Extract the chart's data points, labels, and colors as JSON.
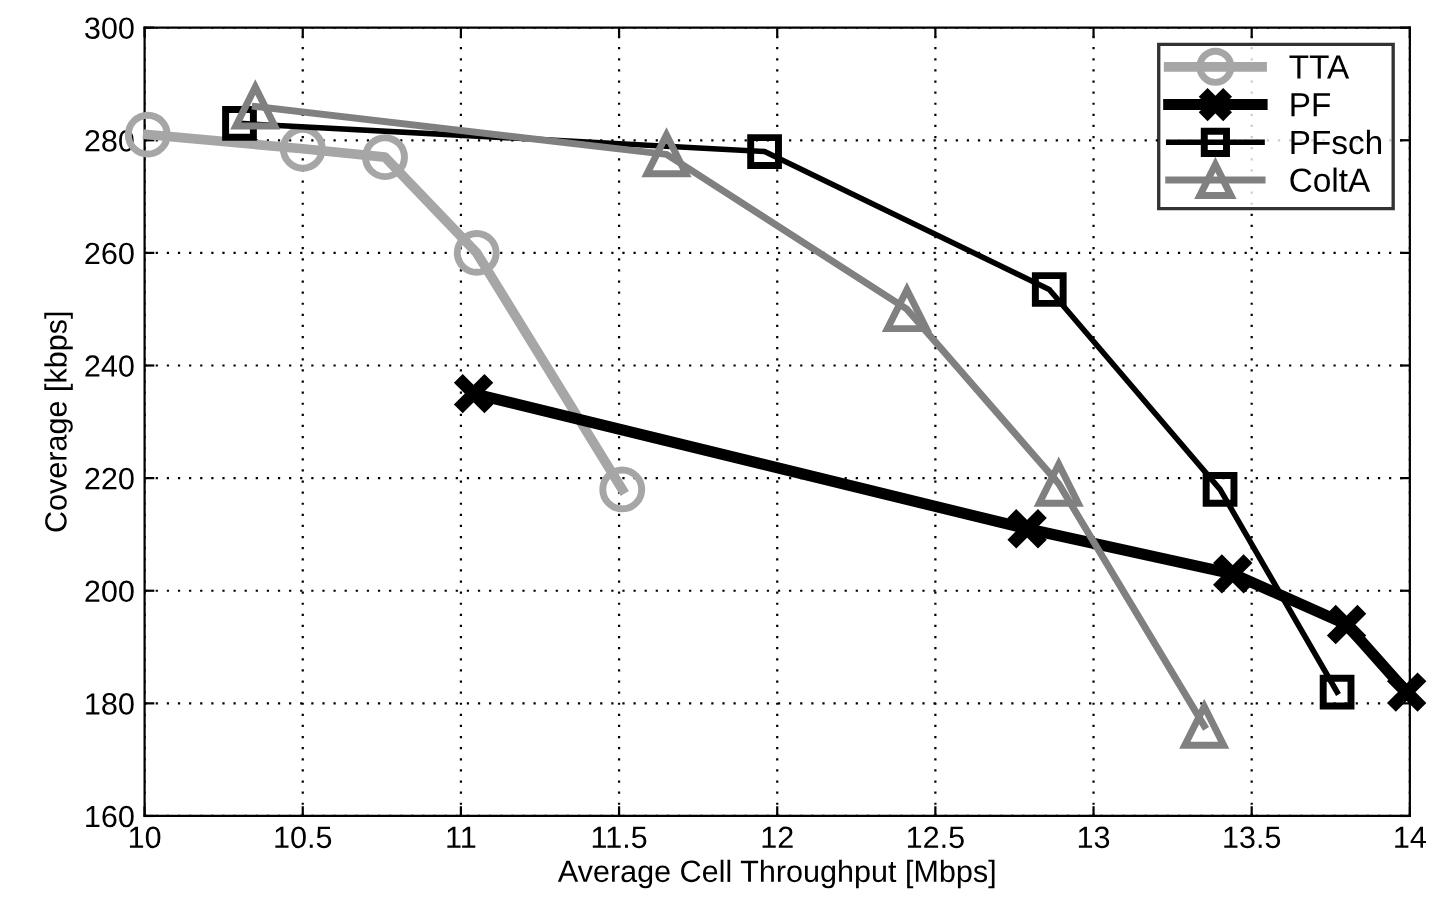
{
  "chart_data": {
    "type": "line",
    "xlabel": "Average Cell Throughput [Mbps]",
    "ylabel": "Coverage [kbps]",
    "xlim": [
      10,
      14
    ],
    "xticks": [
      10,
      10.5,
      11,
      11.5,
      12,
      12.5,
      13,
      13.5,
      14
    ],
    "ylim": [
      160,
      300
    ],
    "yticks": [
      160,
      180,
      200,
      220,
      240,
      260,
      280,
      300
    ],
    "grid": true,
    "legend": "top right",
    "series": [
      {
        "name": "TTA",
        "color": "#a6a6a6",
        "marker": "circle",
        "x": [
          10.01,
          10.5,
          10.76,
          11.05,
          11.51
        ],
        "values": [
          281,
          278.5,
          277,
          260,
          218
        ]
      },
      {
        "name": "PF",
        "color": "#000000",
        "marker": "cross",
        "x": [
          11.04,
          12.79,
          13.44,
          13.8,
          13.99
        ],
        "values": [
          235,
          211,
          203,
          194,
          182
        ]
      },
      {
        "name": "PFsch",
        "color": "#000000",
        "marker": "square",
        "x": [
          10.3,
          11.96,
          12.86,
          13.4,
          13.77
        ],
        "values": [
          283,
          278,
          253.5,
          218,
          182
        ]
      },
      {
        "name": "ColtA",
        "color": "#808080",
        "marker": "triangle",
        "x": [
          10.35,
          11.65,
          12.41,
          12.89,
          13.35
        ],
        "values": [
          286,
          277.5,
          250,
          219,
          176
        ]
      }
    ]
  }
}
